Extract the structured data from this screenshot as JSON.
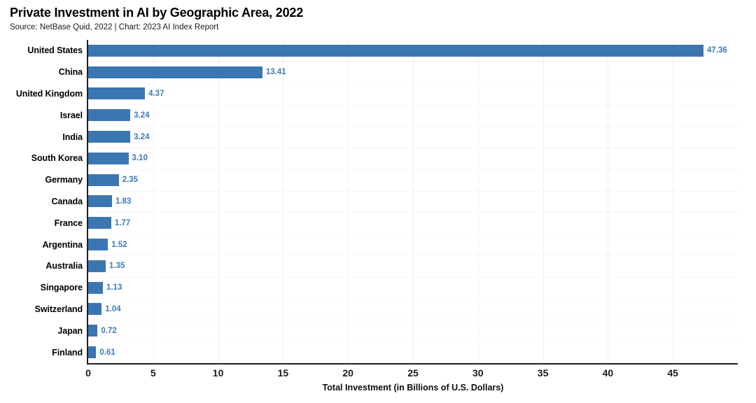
{
  "header": {
    "title": "Private Investment in AI by Geographic Area, 2022",
    "source_line": "Source: NetBase Quid, 2022 | Chart: 2023 AI Index Report"
  },
  "chart_data": {
    "type": "bar",
    "orientation": "horizontal",
    "title": "Private Investment in AI by Geographic Area, 2022",
    "subtitle": "Source: NetBase Quid, 2022 | Chart: 2023 AI Index Report",
    "categories": [
      "United States",
      "China",
      "United Kingdom",
      "Israel",
      "India",
      "South Korea",
      "Germany",
      "Canada",
      "France",
      "Argentina",
      "Australia",
      "Singapore",
      "Switzerland",
      "Japan",
      "Finland"
    ],
    "values": [
      47.36,
      13.41,
      4.37,
      3.24,
      3.24,
      3.1,
      2.35,
      1.83,
      1.77,
      1.52,
      1.35,
      1.13,
      1.04,
      0.72,
      0.61
    ],
    "value_labels": [
      "47.36",
      "13.41",
      "4.37",
      "3.24",
      "3.24",
      "3.10",
      "2.35",
      "1.83",
      "1.77",
      "1.52",
      "1.35",
      "1.13",
      "1.04",
      "0.72",
      "0.61"
    ],
    "xlabel": "Total Investment (in Billions of U.S. Dollars)",
    "ylabel": "",
    "xlim": [
      0,
      50
    ],
    "xticks": [
      0,
      5,
      10,
      15,
      20,
      25,
      30,
      35,
      40,
      45
    ],
    "grid": true,
    "legend": "none",
    "colors": {
      "bar": "#3c76b1",
      "value_label": "#3f79b8",
      "axis": "#202020",
      "gridline_vertical": "#efefef",
      "gridline_horizontal": "#f6f6f6",
      "title": "#000000",
      "subtitle": "#1a1a1a"
    }
  }
}
